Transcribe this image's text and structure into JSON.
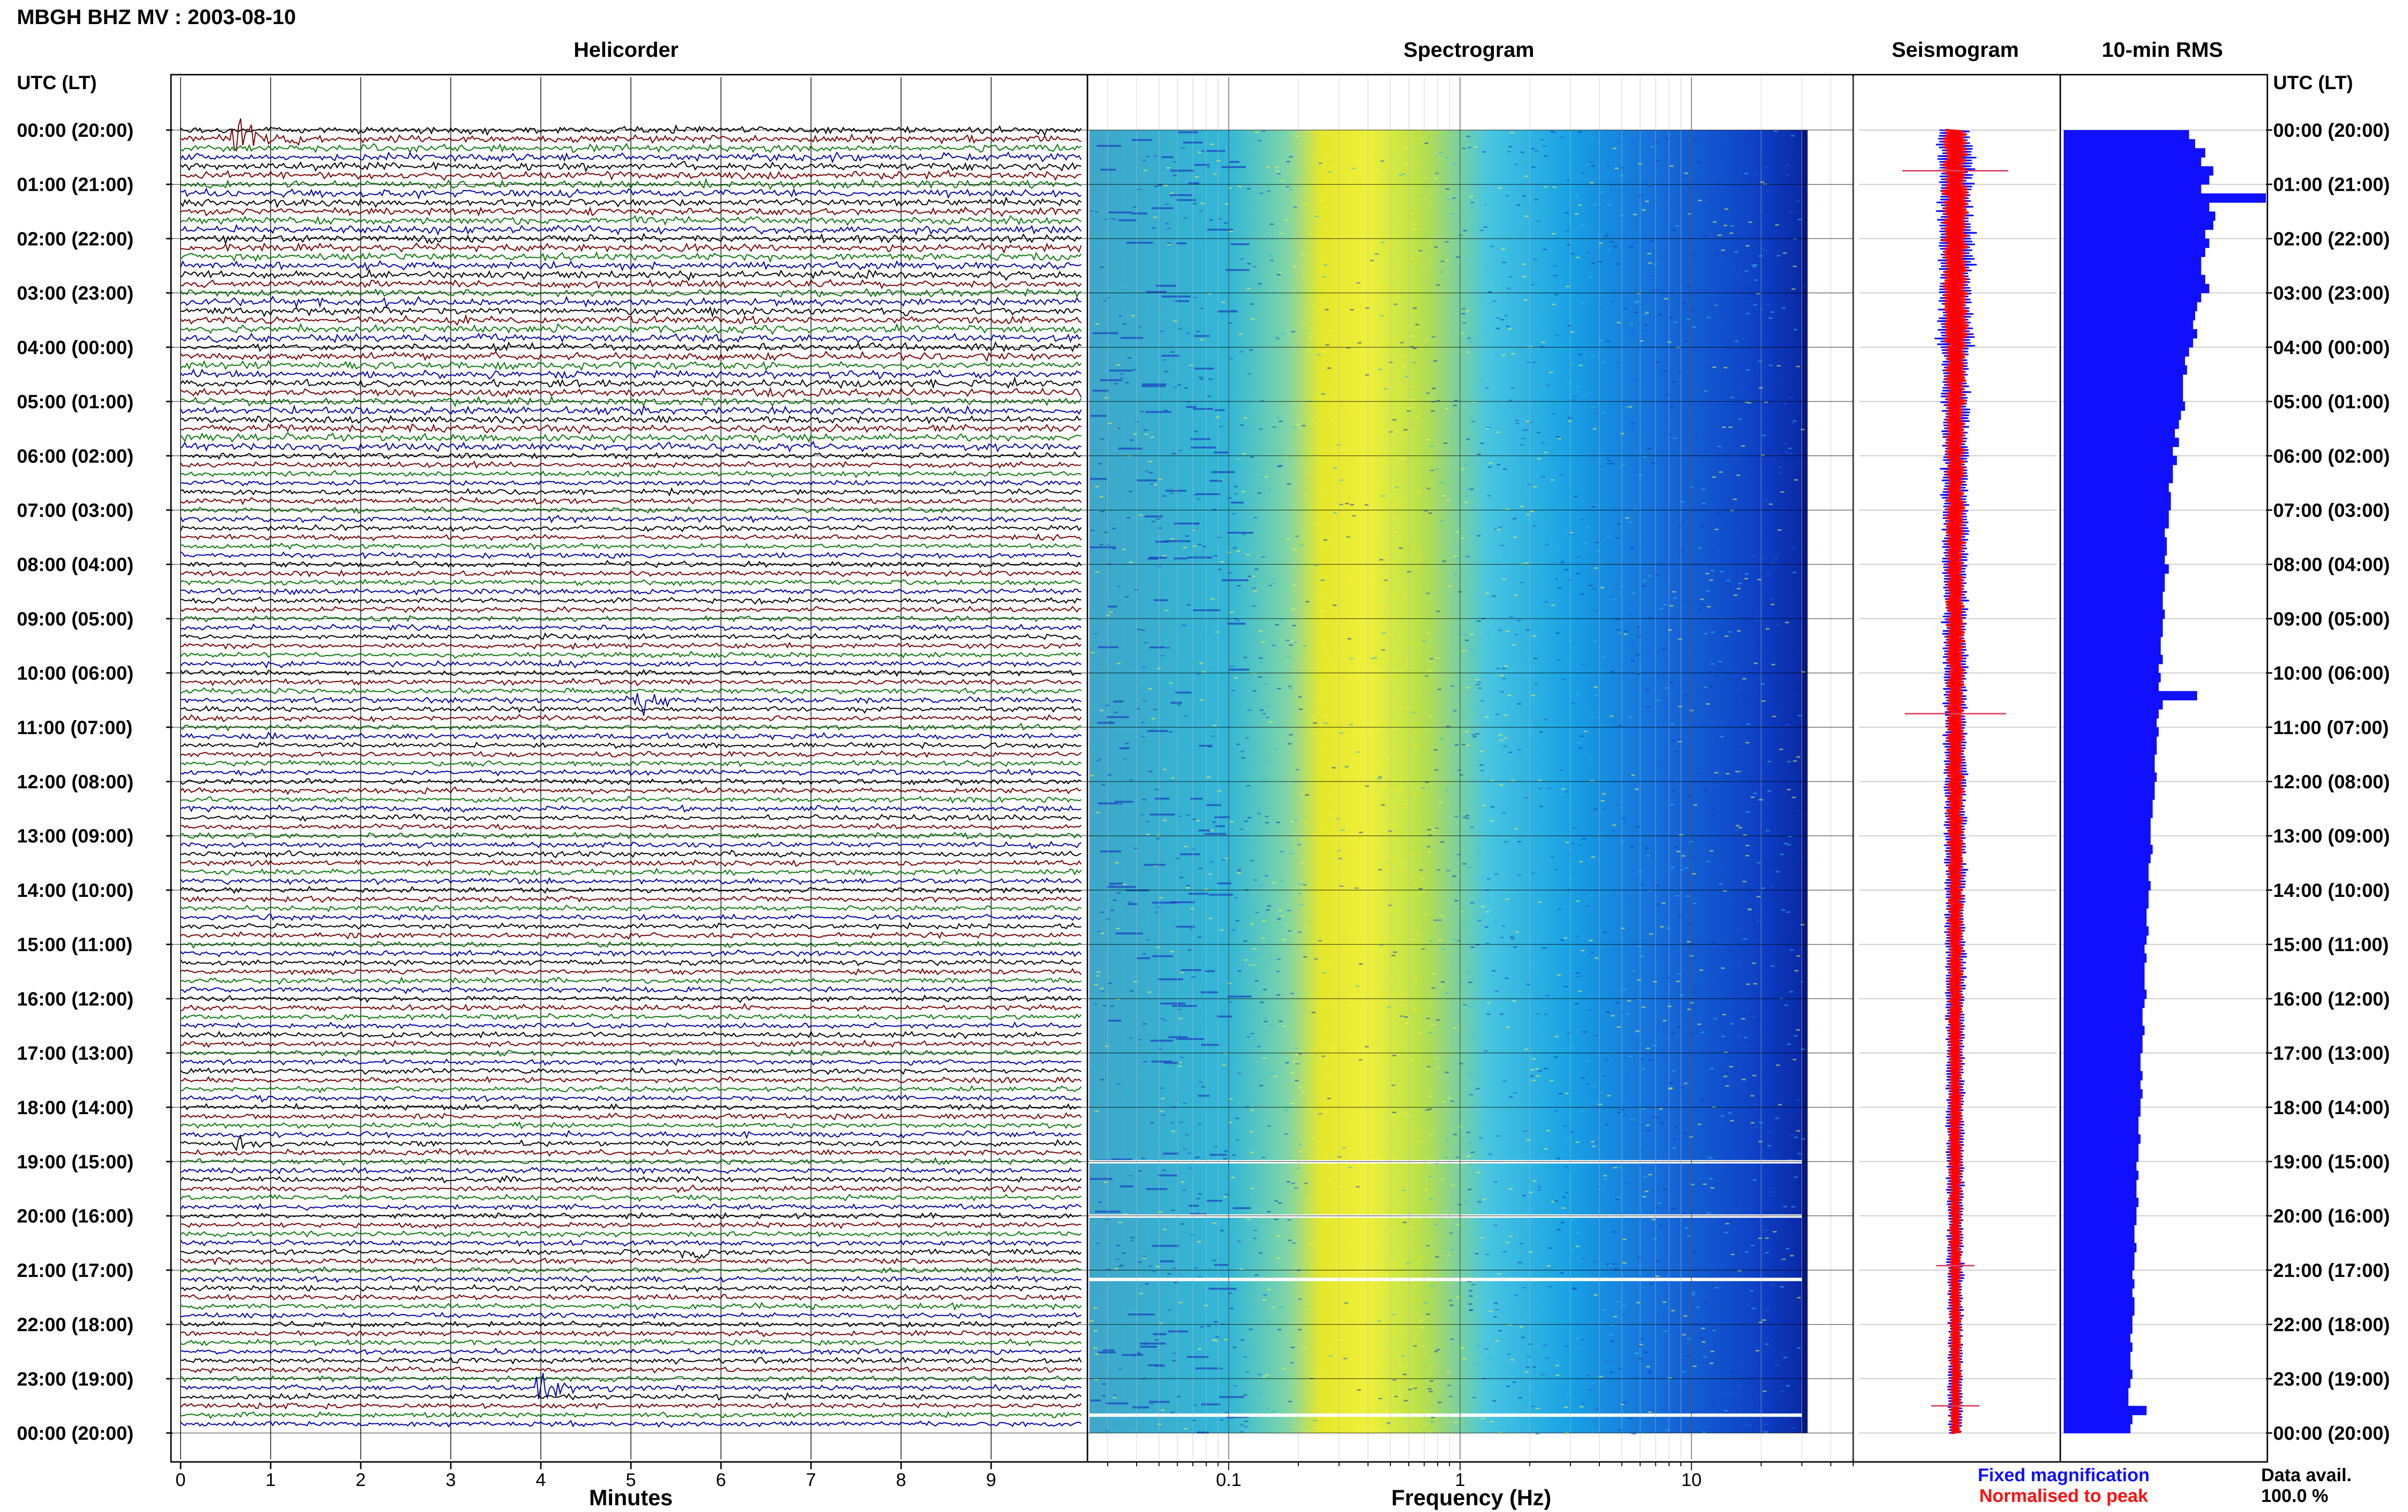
{
  "title": "MBGH BHZ MV : 2003-08-10",
  "panels": {
    "helicorder": "Helicorder",
    "spectrogram": "Spectrogram",
    "seismogram": "Seismogram",
    "rms": "10-min RMS"
  },
  "axis_labels": {
    "time_left": "UTC (LT)",
    "time_right": "UTC (LT)",
    "helicorder_x": "Minutes",
    "spectrogram_x": "Frequency (Hz)"
  },
  "legend": {
    "fixed": "Fixed magnification",
    "normalised": "Normalised to peak",
    "fixed_color": "#1010ff",
    "normalised_color": "#ff1010"
  },
  "data_avail": {
    "label": "Data avail.",
    "value": "100.0 %"
  },
  "colors": {
    "trace_cycle": [
      "#000000",
      "#7a0000",
      "#0a7a0a",
      "#0000b0"
    ],
    "rms_bar": "#1010ff",
    "seismo_red": "#ff0000"
  },
  "chart_data": [
    {
      "type": "line",
      "name": "helicorder",
      "xlabel": "Minutes",
      "xlim": [
        0,
        10
      ],
      "xticks": [
        "0",
        "1",
        "2",
        "3",
        "4",
        "5",
        "6",
        "7",
        "8",
        "9"
      ],
      "rows_per_hour": 6,
      "hours": 24,
      "events": [
        {
          "hour": 0,
          "row": 1,
          "minute": 0.6,
          "amp": 6,
          "color_index": 1
        },
        {
          "hour": 10,
          "row": 3,
          "minute": 5.0,
          "amp": 4,
          "color_index": 0
        },
        {
          "hour": 18,
          "row": 4,
          "minute": 0.6,
          "amp": 1.5,
          "color_index": 1
        },
        {
          "hour": 20,
          "row": 4,
          "minute": 5.6,
          "amp": 2,
          "color_index": 1
        },
        {
          "hour": 23,
          "row": 1,
          "minute": 4.0,
          "amp": 3,
          "color_index": 0
        }
      ]
    },
    {
      "type": "heatmap",
      "name": "spectrogram",
      "xlabel": "Frequency (Hz)",
      "xscale": "log",
      "xlim": [
        0.025,
        50
      ],
      "xtick_labels": [
        "0.1",
        "1",
        "10"
      ],
      "xtick_values": [
        0.1,
        1,
        10
      ],
      "peak_frequency_hz": 0.3,
      "colormap": "jet",
      "data_gaps_utc": [
        "19:00",
        "20:00",
        "21:10",
        "23:40"
      ]
    },
    {
      "type": "line",
      "name": "seismogram",
      "spikes_utc": [
        "00:45",
        "10:45",
        "20:55",
        "23:30"
      ]
    },
    {
      "type": "bar",
      "name": "10-min RMS",
      "orientation": "horizontal",
      "values": [
        62,
        65,
        70,
        68,
        74,
        72,
        68,
        100,
        72,
        75,
        74,
        70,
        72,
        70,
        68,
        68,
        70,
        72,
        68,
        66,
        65,
        64,
        66,
        64,
        62,
        60,
        61,
        59,
        59,
        59,
        60,
        58,
        57,
        55,
        57,
        54,
        56,
        54,
        54,
        52,
        53,
        53,
        52,
        52,
        50,
        51,
        51,
        50,
        52,
        50,
        50,
        49,
        49,
        50,
        49,
        49,
        48,
        48,
        49,
        47,
        48,
        47,
        66,
        49,
        47,
        46,
        47,
        46,
        46,
        45,
        45,
        46,
        45,
        45,
        44,
        44,
        43,
        43,
        43,
        44,
        43,
        42,
        42,
        43,
        42,
        42,
        41,
        41,
        42,
        41,
        40,
        41,
        40,
        40,
        40,
        41,
        40,
        39,
        39,
        40,
        39,
        39,
        38,
        38,
        39,
        38,
        39,
        38,
        38,
        37,
        37,
        38,
        37,
        37,
        36,
        37,
        36,
        36,
        37,
        36,
        36,
        35,
        35,
        36,
        35,
        35,
        34,
        35,
        34,
        35,
        35,
        34,
        34,
        33,
        34,
        33,
        33,
        34,
        33,
        32,
        32,
        41,
        34,
        33
      ]
    }
  ]
}
